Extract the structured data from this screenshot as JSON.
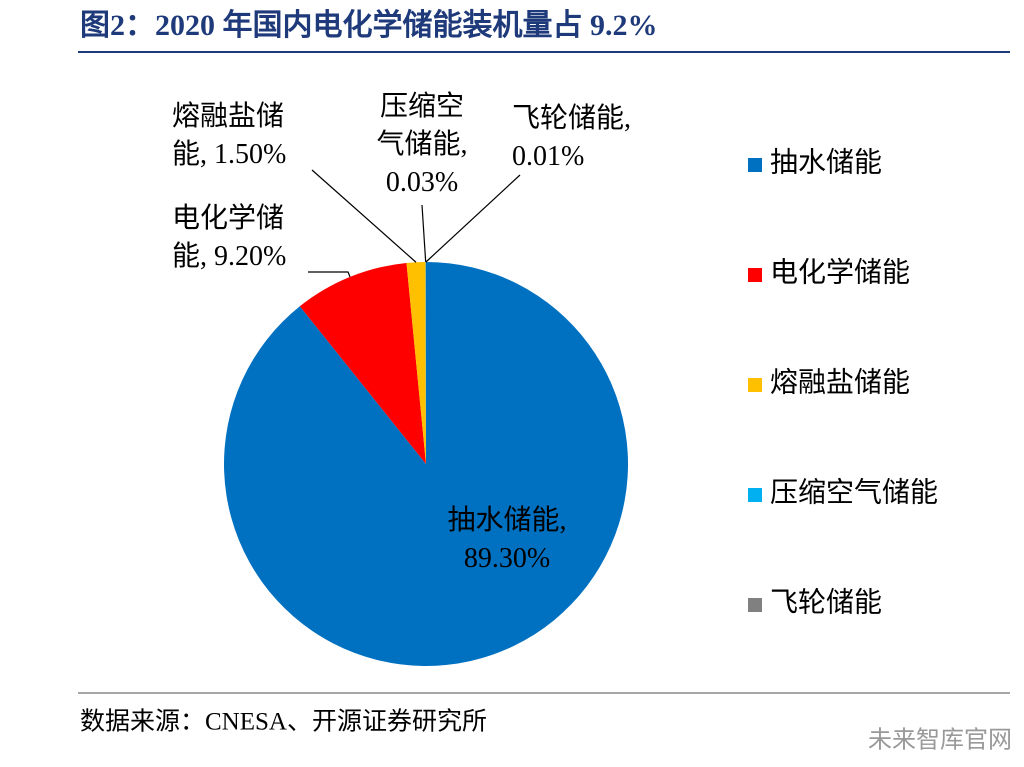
{
  "chart_data": {
    "type": "pie",
    "title": "图2：2020 年国内电化学储能装机量占 9.2%",
    "categories": [
      "抽水储能",
      "电化学储能",
      "熔融盐储能",
      "压缩空气储能",
      "飞轮储能"
    ],
    "values": [
      89.3,
      9.2,
      1.5,
      0.03,
      0.01
    ],
    "value_labels": [
      "抽水储能, 89.30%",
      "电化学储能, 9.20%",
      "熔融盐储能, 1.50%",
      "压缩空气储能, 0.03%",
      "飞轮储能, 0.01%"
    ],
    "colors": [
      "#0070c0",
      "#ff0000",
      "#ffc000",
      "#00b0f0",
      "#808080"
    ],
    "legend": "right",
    "source": "数据来源：CNESA、开源证券研究所",
    "watermark": "未来智库官网"
  }
}
